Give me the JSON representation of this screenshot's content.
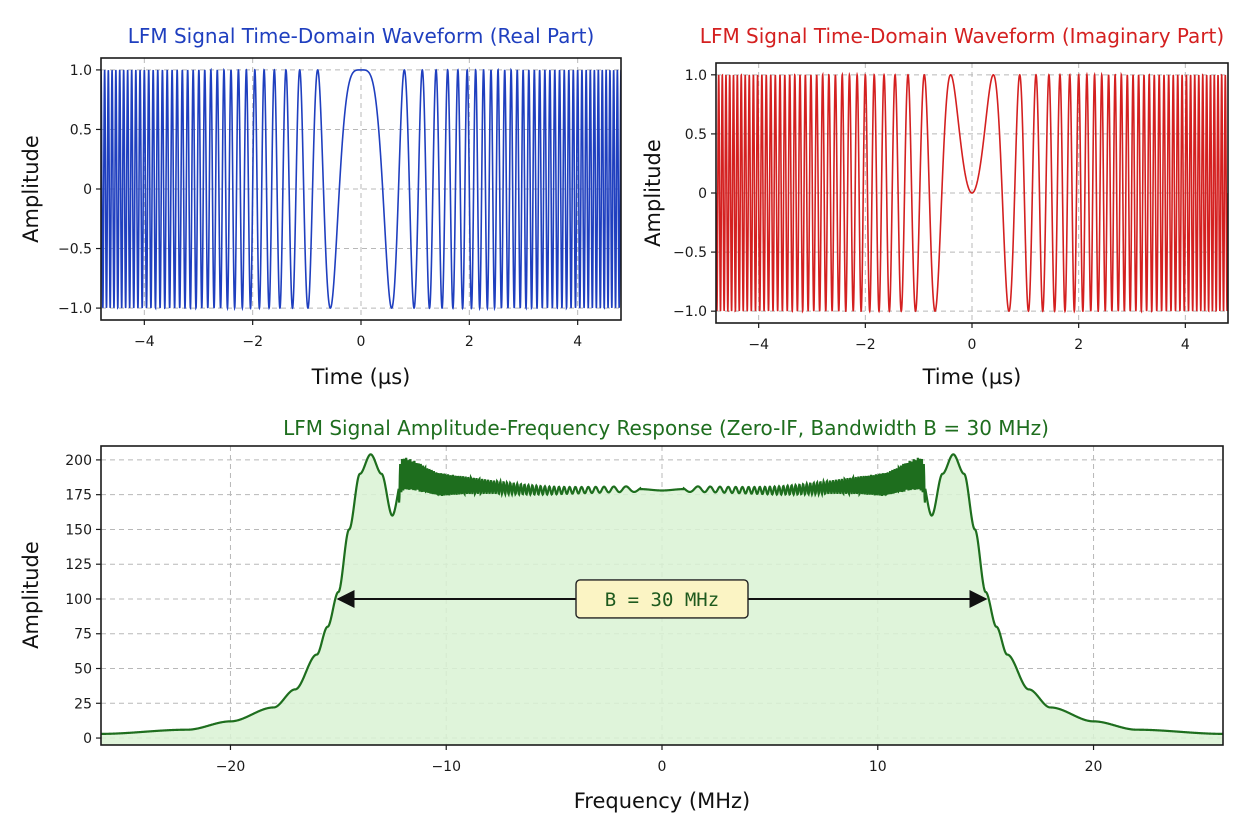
{
  "chart_data": [
    {
      "type": "line",
      "id": "real",
      "title": "LFM Signal Time-Domain Waveform (Real Part)",
      "xlabel": "Time (µs)",
      "ylabel": "Amplitude",
      "xlim": [
        -4.8,
        4.8
      ],
      "ylim": [
        -1.1,
        1.1
      ],
      "xticks": [
        -4,
        -2,
        0,
        2,
        4
      ],
      "xtick_labels": [
        "−4",
        "−2",
        "0",
        "2",
        "4"
      ],
      "yticks": [
        -1.0,
        -0.5,
        0,
        0.5,
        1.0
      ],
      "ytick_labels": [
        "−1.0",
        "−0.5",
        "0",
        "0.5",
        "1.0"
      ],
      "grid": true,
      "color": "#1f3fbf",
      "series": [
        {
          "function": "cos(pi*k*t^2)",
          "t_range_us": [
            -4.8,
            4.8
          ],
          "chirp_rate_MHz_per_us": 3.125
        }
      ]
    },
    {
      "type": "line",
      "id": "imag",
      "title": "LFM Signal Time-Domain Waveform (Imaginary Part)",
      "xlabel": "Time (µs)",
      "ylabel": "Amplitude",
      "xlim": [
        -4.8,
        4.8
      ],
      "ylim": [
        -1.1,
        1.1
      ],
      "xticks": [
        -4,
        -2,
        0,
        2,
        4
      ],
      "xtick_labels": [
        "−4",
        "−2",
        "0",
        "2",
        "4"
      ],
      "yticks": [
        -1.0,
        -0.5,
        0,
        0.5,
        1.0
      ],
      "ytick_labels": [
        "−1.0",
        "−0.5",
        "0",
        "0.5",
        "1.0"
      ],
      "grid": true,
      "color": "#d42020",
      "series": [
        {
          "function": "sin(pi*k*t^2)",
          "t_range_us": [
            -4.8,
            4.8
          ],
          "chirp_rate_MHz_per_us": 3.125
        }
      ]
    },
    {
      "type": "area",
      "id": "spectrum",
      "title": "LFM Signal Amplitude-Frequency Response (Zero-IF, Bandwidth B = 30 MHz)",
      "xlabel": "Frequency (MHz)",
      "ylabel": "Amplitude",
      "xlim": [
        -26,
        26
      ],
      "ylim": [
        -5,
        210
      ],
      "xticks": [
        -20,
        -10,
        0,
        10,
        20
      ],
      "xtick_labels": [
        "−20",
        "−10",
        "0",
        "10",
        "20"
      ],
      "yticks": [
        0,
        25,
        50,
        75,
        100,
        125,
        150,
        175,
        200
      ],
      "ytick_labels": [
        "0",
        "25",
        "50",
        "75",
        "100",
        "125",
        "150",
        "175",
        "200"
      ],
      "grid": true,
      "color": "#1e6e1e",
      "fill_color": "#d9f2d4",
      "series": [
        {
          "description_points": {
            "f_MHz": [
              -26,
              -22,
              -20,
              -18,
              -17,
              -16,
              -15.5,
              -15,
              -14.5,
              -14,
              -13.5,
              -13,
              -12.5,
              -12,
              -10,
              -5,
              -1,
              0,
              1,
              5,
              10,
              12,
              12.5,
              13,
              13.5,
              14,
              14.5,
              15,
              15.5,
              16,
              17,
              18,
              20,
              22,
              26
            ],
            "amplitude": [
              3,
              6,
              12,
              22,
              35,
              60,
              80,
              105,
              150,
              190,
              204,
              190,
              160,
              190,
              182,
              178,
              179,
              178,
              179,
              178,
              182,
              190,
              160,
              190,
              204,
              190,
              150,
              105,
              80,
              60,
              35,
              22,
              12,
              6,
              3
            ]
          }
        }
      ],
      "annotation": {
        "text": "B = 30 MHz",
        "x_from": -15,
        "x_to": 15,
        "y": 100
      }
    }
  ]
}
